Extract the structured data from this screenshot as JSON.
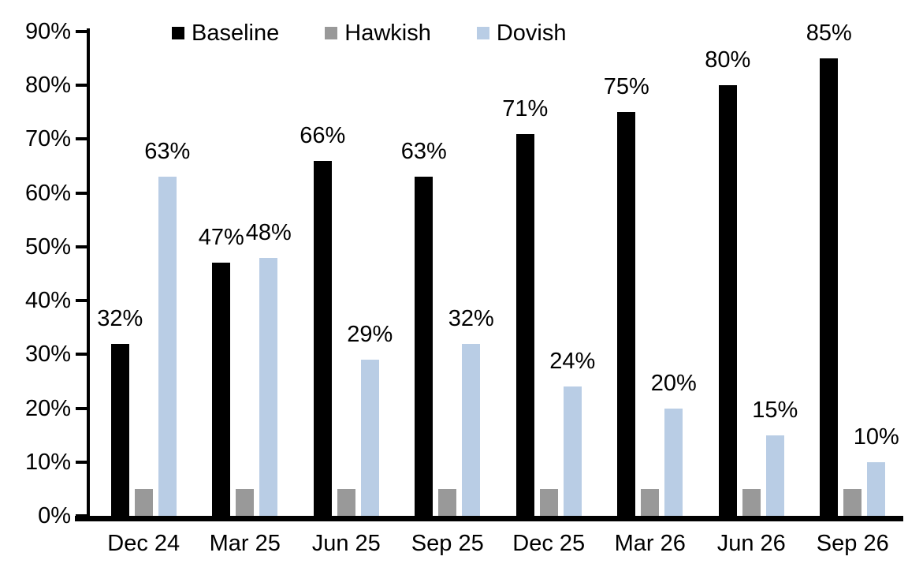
{
  "chart_data": {
    "type": "bar",
    "title": "",
    "xlabel": "",
    "ylabel": "",
    "grid": false,
    "categories": [
      "Dec 24",
      "Mar 25",
      "Jun 25",
      "Sep 25",
      "Dec 25",
      "Mar 26",
      "Jun 26",
      "Sep 26"
    ],
    "series": [
      {
        "name": "Baseline",
        "color": "#000000",
        "values": [
          32,
          47,
          66,
          63,
          71,
          75,
          80,
          85
        ],
        "labels": [
          "32%",
          "47%",
          "66%",
          "63%",
          "71%",
          "75%",
          "80%",
          "85%"
        ],
        "show_labels": true
      },
      {
        "name": "Hawkish",
        "color": "#999999",
        "values": [
          5,
          5,
          5,
          5,
          5,
          5,
          5,
          5
        ],
        "labels": [],
        "show_labels": false
      },
      {
        "name": "Dovish",
        "color": "#B9CDE5",
        "values": [
          63,
          48,
          29,
          32,
          24,
          20,
          15,
          10
        ],
        "labels": [
          "63%",
          "48%",
          "29%",
          "32%",
          "24%",
          "20%",
          "15%",
          "10%"
        ],
        "show_labels": true
      }
    ],
    "y_axis": {
      "min": 0,
      "max": 90,
      "step": 10,
      "tick_labels": [
        "0%",
        "10%",
        "20%",
        "30%",
        "40%",
        "50%",
        "60%",
        "70%",
        "80%",
        "90%"
      ]
    },
    "legend": {
      "position": "top",
      "entries": [
        "Baseline",
        "Hawkish",
        "Dovish"
      ]
    },
    "colors": {
      "axis": "#000000",
      "text": "#000000",
      "background": "#ffffff"
    }
  }
}
